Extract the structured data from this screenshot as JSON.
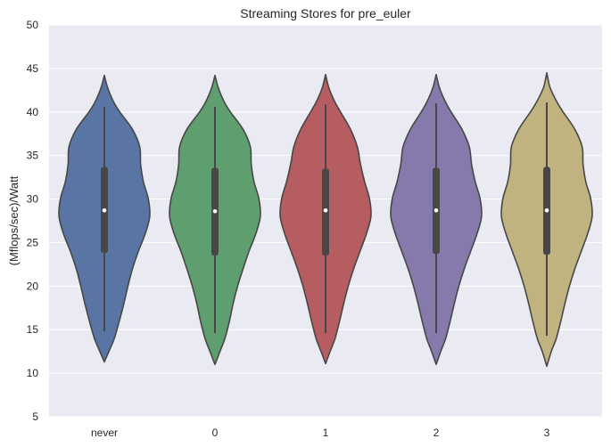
{
  "chart_data": {
    "type": "violin",
    "title": "Streaming Stores for pre_euler",
    "xlabel": "",
    "ylabel": "(Mflops/sec)/Watt",
    "ylim": [
      5,
      50
    ],
    "yticks": [
      5,
      10,
      15,
      20,
      25,
      30,
      35,
      40,
      45,
      50
    ],
    "grid": true,
    "background_color": "#EAEAF2",
    "grid_color": "#FFFFFF",
    "outline_color": "#474747",
    "categories": [
      "never",
      "0",
      "1",
      "2",
      "3"
    ],
    "series": [
      {
        "category": "never",
        "color": "#5975A4",
        "kde_min": 11.3,
        "kde_max": 44.2,
        "whisker_low": 14.8,
        "whisker_high": 40.6,
        "q1": 23.8,
        "median": 28.7,
        "q3": 33.7,
        "profile_y": [
          11.3,
          12.5,
          14,
          16,
          18,
          20,
          22,
          24,
          26,
          28,
          30,
          32,
          34,
          36,
          38,
          40,
          41,
          42,
          43,
          44.2
        ],
        "profile_w": [
          0.0,
          0.1,
          0.22,
          0.33,
          0.43,
          0.52,
          0.62,
          0.75,
          0.9,
          1.0,
          0.97,
          0.86,
          0.8,
          0.78,
          0.62,
          0.34,
          0.22,
          0.13,
          0.06,
          0.0
        ]
      },
      {
        "category": "0",
        "color": "#5F9E6E",
        "kde_min": 11.0,
        "kde_max": 44.2,
        "whisker_low": 14.6,
        "whisker_high": 40.6,
        "q1": 23.5,
        "median": 28.6,
        "q3": 33.6,
        "profile_y": [
          11.0,
          12.5,
          14,
          16,
          18,
          20,
          22,
          24,
          26,
          28,
          30,
          32,
          34,
          36,
          38,
          40,
          41,
          42,
          43,
          44.2
        ],
        "profile_w": [
          0.0,
          0.11,
          0.22,
          0.32,
          0.4,
          0.5,
          0.62,
          0.75,
          0.9,
          1.0,
          0.97,
          0.86,
          0.8,
          0.78,
          0.62,
          0.34,
          0.22,
          0.13,
          0.06,
          0.0
        ]
      },
      {
        "category": "1",
        "color": "#B55D60",
        "kde_min": 11.1,
        "kde_max": 44.3,
        "whisker_low": 14.6,
        "whisker_high": 40.9,
        "q1": 23.5,
        "median": 28.7,
        "q3": 33.5,
        "profile_y": [
          11.1,
          12.5,
          14,
          16,
          18,
          20,
          22,
          24,
          26,
          28,
          30,
          32,
          34,
          36,
          38,
          40,
          41,
          42,
          43,
          44.3
        ],
        "profile_w": [
          0.0,
          0.1,
          0.21,
          0.31,
          0.4,
          0.5,
          0.62,
          0.76,
          0.9,
          1.0,
          0.97,
          0.86,
          0.77,
          0.7,
          0.55,
          0.33,
          0.22,
          0.13,
          0.06,
          0.0
        ]
      },
      {
        "category": "2",
        "color": "#857AAB",
        "kde_min": 11.0,
        "kde_max": 44.3,
        "whisker_low": 14.6,
        "whisker_high": 41.0,
        "q1": 23.7,
        "median": 28.7,
        "q3": 33.6,
        "profile_y": [
          11.0,
          12.5,
          14,
          16,
          18,
          20,
          22,
          24,
          26,
          28,
          30,
          32,
          34,
          36,
          38,
          40,
          41,
          42,
          43,
          44.3
        ],
        "profile_w": [
          0.0,
          0.1,
          0.21,
          0.31,
          0.4,
          0.5,
          0.62,
          0.76,
          0.9,
          1.0,
          0.97,
          0.86,
          0.78,
          0.73,
          0.57,
          0.33,
          0.22,
          0.13,
          0.06,
          0.0
        ]
      },
      {
        "category": "3",
        "color": "#C1B37F",
        "kde_min": 10.8,
        "kde_max": 44.5,
        "whisker_low": 14.3,
        "whisker_high": 41.1,
        "q1": 23.6,
        "median": 28.7,
        "q3": 33.7,
        "profile_y": [
          10.8,
          12.5,
          14,
          16,
          18,
          20,
          22,
          24,
          26,
          28,
          30,
          32,
          34,
          36,
          38,
          40,
          41,
          42,
          43,
          44.5
        ],
        "profile_w": [
          0.0,
          0.1,
          0.21,
          0.31,
          0.4,
          0.5,
          0.62,
          0.76,
          0.9,
          1.0,
          0.97,
          0.86,
          0.8,
          0.78,
          0.62,
          0.36,
          0.24,
          0.14,
          0.06,
          0.0
        ]
      }
    ]
  }
}
